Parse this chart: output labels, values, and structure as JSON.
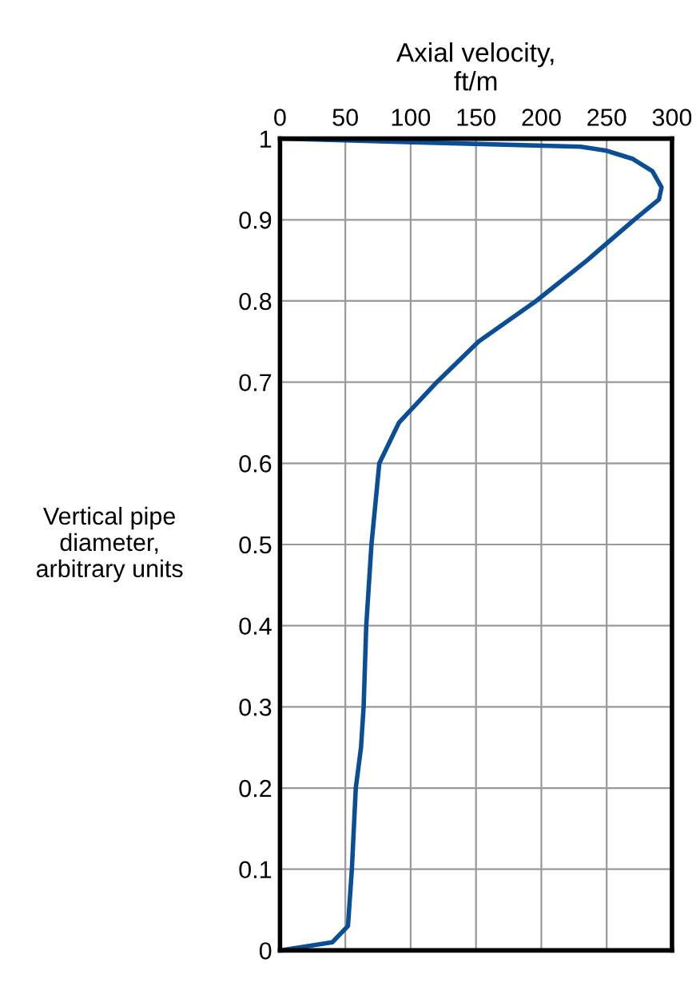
{
  "chart_data": {
    "type": "line",
    "xlabel": "Axial velocity,\nft/m",
    "ylabel": "Vertical pipe\ndiameter,\narbitrary units",
    "xlim": [
      0,
      300
    ],
    "xticks": [
      0,
      50,
      100,
      150,
      200,
      250,
      300
    ],
    "ylim": [
      0,
      1
    ],
    "yticks": [
      0,
      0.1,
      0.2,
      0.3,
      0.4,
      0.5,
      0.6,
      0.7,
      0.8,
      0.9,
      1
    ],
    "grid": true,
    "legend": false,
    "marker": "none",
    "line_style": "solid",
    "series": [
      {
        "color": "#0a4f96",
        "x": [
          0,
          40,
          52,
          55,
          58,
          62,
          64,
          66,
          70,
          76,
          91,
          120,
          152,
          196,
          235,
          271,
          290,
          292,
          285,
          270,
          250,
          230,
          0
        ],
        "values": [
          0,
          0.01,
          0.03,
          0.1,
          0.2,
          0.25,
          0.3,
          0.4,
          0.5,
          0.6,
          0.65,
          0.7,
          0.75,
          0.8,
          0.85,
          0.9,
          0.925,
          0.94,
          0.96,
          0.975,
          0.985,
          0.99,
          1
        ]
      }
    ]
  }
}
